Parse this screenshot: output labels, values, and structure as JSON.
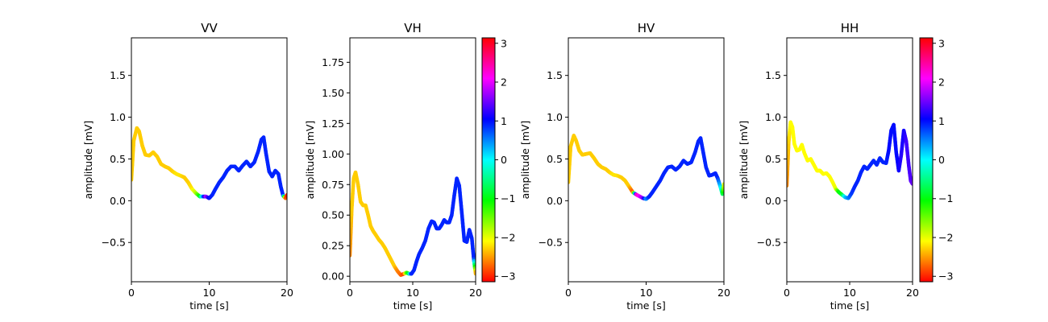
{
  "chart_data": [
    {
      "type": "line",
      "title": "VV",
      "xlabel": "time [s]",
      "ylabel": "amplitude [mV]",
      "xlim": [
        0,
        20
      ],
      "ylim": [
        -0.97,
        1.95
      ],
      "xticks": [
        0,
        10,
        20
      ],
      "yticks": [
        -0.5,
        0.0,
        0.5,
        1.0,
        1.5
      ],
      "ytick_labels": [
        "−0.5",
        "0.0",
        "0.5",
        "1.0",
        "1.5"
      ],
      "colorbar": false,
      "x": [
        0.0,
        0.3,
        0.7,
        1.0,
        1.4,
        1.8,
        2.3,
        2.8,
        3.3,
        3.8,
        4.3,
        4.8,
        5.3,
        5.8,
        6.3,
        6.8,
        7.3,
        7.8,
        8.3,
        8.8,
        9.2,
        9.6,
        10.0,
        10.4,
        10.8,
        11.3,
        11.8,
        12.3,
        12.8,
        13.3,
        13.8,
        14.3,
        14.8,
        15.3,
        15.8,
        16.3,
        16.7,
        17.0,
        17.3,
        17.7,
        18.1,
        18.5,
        18.9,
        19.2,
        19.5,
        19.8,
        20.0
      ],
      "y": [
        0.25,
        0.72,
        0.87,
        0.83,
        0.66,
        0.55,
        0.54,
        0.58,
        0.53,
        0.44,
        0.41,
        0.39,
        0.35,
        0.32,
        0.3,
        0.28,
        0.22,
        0.14,
        0.09,
        0.05,
        0.05,
        0.05,
        0.03,
        0.07,
        0.14,
        0.22,
        0.28,
        0.36,
        0.41,
        0.41,
        0.36,
        0.42,
        0.47,
        0.41,
        0.46,
        0.59,
        0.73,
        0.76,
        0.57,
        0.35,
        0.29,
        0.36,
        0.32,
        0.17,
        0.06,
        0.03,
        0.07
      ],
      "phase": [
        -2.3,
        -2.3,
        -2.3,
        -2.3,
        -2.3,
        -2.3,
        -2.3,
        -2.3,
        -2.3,
        -2.3,
        -2.3,
        -2.3,
        -2.3,
        -2.2,
        -2.2,
        -2.3,
        -2.3,
        -2.2,
        -1.8,
        -1.0,
        0.4,
        1.8,
        1.0,
        0.9,
        0.9,
        0.9,
        0.9,
        0.9,
        0.9,
        0.9,
        0.9,
        0.9,
        0.9,
        0.9,
        0.9,
        0.9,
        0.9,
        0.9,
        0.9,
        0.9,
        0.9,
        0.9,
        0.9,
        0.9,
        0.9,
        -2.7,
        -3.0
      ]
    },
    {
      "type": "line",
      "title": "VH",
      "xlabel": "time [s]",
      "ylabel": "amplitude [mV]",
      "xlim": [
        0,
        20
      ],
      "ylim": [
        -0.045,
        1.95
      ],
      "xticks": [
        0,
        10,
        20
      ],
      "yticks": [
        0.0,
        0.25,
        0.5,
        0.75,
        1.0,
        1.25,
        1.5,
        1.75
      ],
      "ytick_labels": [
        "0.00",
        "0.25",
        "0.50",
        "0.75",
        "1.00",
        "1.25",
        "1.50",
        "1.75"
      ],
      "colorbar": true,
      "colorbar_ticks": [
        -3,
        -2,
        -1,
        0,
        1,
        2,
        3
      ],
      "colorbar_tick_labels": [
        "−3",
        "−2",
        "−1",
        "0",
        "1",
        "2",
        "3"
      ],
      "colorbar_range": [
        -3.14,
        3.14
      ],
      "x": [
        0.0,
        0.3,
        0.6,
        0.9,
        1.3,
        1.7,
        2.1,
        2.5,
        2.9,
        3.3,
        3.7,
        4.1,
        4.6,
        5.1,
        5.6,
        6.1,
        6.6,
        7.1,
        7.6,
        8.1,
        8.6,
        9.0,
        9.4,
        9.8,
        10.2,
        10.6,
        11.0,
        11.5,
        12.0,
        12.5,
        13.0,
        13.4,
        13.8,
        14.2,
        14.6,
        15.0,
        15.4,
        15.8,
        16.2,
        16.6,
        17.0,
        17.4,
        17.8,
        18.2,
        18.6,
        19.0,
        19.4,
        19.7,
        20.0
      ],
      "y": [
        0.17,
        0.55,
        0.8,
        0.85,
        0.75,
        0.61,
        0.58,
        0.58,
        0.5,
        0.41,
        0.37,
        0.34,
        0.3,
        0.27,
        0.23,
        0.18,
        0.13,
        0.08,
        0.04,
        0.01,
        0.02,
        0.03,
        0.02,
        0.02,
        0.05,
        0.12,
        0.18,
        0.23,
        0.29,
        0.39,
        0.45,
        0.44,
        0.39,
        0.39,
        0.42,
        0.46,
        0.44,
        0.44,
        0.5,
        0.66,
        0.8,
        0.74,
        0.52,
        0.29,
        0.28,
        0.38,
        0.31,
        0.14,
        0.02
      ],
      "phase": [
        -2.6,
        -2.3,
        -2.3,
        -2.3,
        -2.3,
        -2.3,
        -2.3,
        -2.3,
        -2.3,
        -2.3,
        -2.3,
        -2.3,
        -2.3,
        -2.3,
        -2.3,
        -2.3,
        -2.3,
        -2.3,
        -2.6,
        -2.7,
        -2.9,
        -1.5,
        -0.7,
        0.9,
        0.9,
        0.9,
        0.9,
        0.9,
        0.9,
        0.9,
        0.9,
        0.9,
        0.9,
        0.9,
        0.9,
        0.9,
        0.9,
        0.9,
        0.9,
        0.9,
        0.9,
        0.9,
        0.9,
        0.9,
        0.9,
        0.9,
        0.9,
        0.9,
        -2.6
      ]
    },
    {
      "type": "line",
      "title": "HV",
      "xlabel": "time [s]",
      "ylabel": "amplitude [mV]",
      "xlim": [
        0,
        20
      ],
      "ylim": [
        -0.97,
        1.95
      ],
      "xticks": [
        0,
        10,
        20
      ],
      "yticks": [
        -0.5,
        0.0,
        0.5,
        1.0,
        1.5
      ],
      "ytick_labels": [
        "−0.5",
        "0.0",
        "0.5",
        "1.0",
        "1.5"
      ],
      "colorbar": false,
      "x": [
        0.0,
        0.3,
        0.7,
        1.0,
        1.4,
        1.8,
        2.3,
        2.8,
        3.3,
        3.8,
        4.3,
        4.8,
        5.3,
        5.8,
        6.3,
        6.8,
        7.3,
        7.8,
        8.3,
        8.8,
        9.2,
        9.6,
        10.0,
        10.4,
        10.8,
        11.3,
        11.8,
        12.3,
        12.8,
        13.3,
        13.8,
        14.3,
        14.8,
        15.3,
        15.8,
        16.3,
        16.7,
        17.0,
        17.3,
        17.7,
        18.1,
        18.5,
        18.9,
        19.2,
        19.5,
        19.8,
        20.0
      ],
      "y": [
        0.22,
        0.65,
        0.78,
        0.72,
        0.6,
        0.55,
        0.56,
        0.57,
        0.51,
        0.44,
        0.4,
        0.38,
        0.34,
        0.31,
        0.3,
        0.28,
        0.24,
        0.17,
        0.1,
        0.07,
        0.05,
        0.03,
        0.02,
        0.05,
        0.1,
        0.17,
        0.24,
        0.33,
        0.4,
        0.41,
        0.37,
        0.41,
        0.48,
        0.44,
        0.46,
        0.58,
        0.71,
        0.75,
        0.6,
        0.4,
        0.3,
        0.31,
        0.33,
        0.27,
        0.18,
        0.08,
        0.2
      ],
      "phase": [
        -2.3,
        -2.3,
        -2.3,
        -2.3,
        -2.3,
        -2.3,
        -2.3,
        -2.3,
        -2.3,
        -2.3,
        -2.3,
        -2.3,
        -2.3,
        -2.2,
        -2.2,
        -2.3,
        -2.3,
        -2.3,
        -2.8,
        2.4,
        2.0,
        1.6,
        0.4,
        0.9,
        0.9,
        0.9,
        0.9,
        0.9,
        0.9,
        0.9,
        0.9,
        0.9,
        0.9,
        0.9,
        0.9,
        0.9,
        0.9,
        0.9,
        0.9,
        0.9,
        0.9,
        0.9,
        0.9,
        0.9,
        0.3,
        -0.6,
        -2.0
      ]
    },
    {
      "type": "line",
      "title": "HH",
      "xlabel": "time [s]",
      "ylabel": "amplitude [mV]",
      "xlim": [
        0,
        20
      ],
      "ylim": [
        -0.97,
        1.95
      ],
      "xticks": [
        0,
        10,
        20
      ],
      "yticks": [
        -0.5,
        0.0,
        0.5,
        1.0,
        1.5
      ],
      "ytick_labels": [
        "−0.5",
        "0.0",
        "0.5",
        "1.0",
        "1.5"
      ],
      "colorbar": true,
      "colorbar_ticks": [
        -3,
        -2,
        -1,
        0,
        1,
        2,
        3
      ],
      "colorbar_tick_labels": [
        "−3",
        "−2",
        "−1",
        "0",
        "1",
        "2",
        "3"
      ],
      "colorbar_range": [
        -3.14,
        3.14
      ],
      "x": [
        0.0,
        0.3,
        0.6,
        0.9,
        1.2,
        1.6,
        2.0,
        2.4,
        2.8,
        3.3,
        3.8,
        4.3,
        4.8,
        5.3,
        5.8,
        6.3,
        6.8,
        7.3,
        7.8,
        8.3,
        8.8,
        9.3,
        9.8,
        10.3,
        10.8,
        11.3,
        11.8,
        12.3,
        12.8,
        13.3,
        13.8,
        14.3,
        14.8,
        15.3,
        15.8,
        16.2,
        16.6,
        17.0,
        17.4,
        17.8,
        18.2,
        18.6,
        19.0,
        19.4,
        19.7,
        20.0
      ],
      "y": [
        0.18,
        0.7,
        0.94,
        0.88,
        0.68,
        0.6,
        0.61,
        0.67,
        0.57,
        0.48,
        0.5,
        0.43,
        0.36,
        0.36,
        0.32,
        0.33,
        0.29,
        0.22,
        0.14,
        0.1,
        0.07,
        0.04,
        0.03,
        0.09,
        0.17,
        0.24,
        0.34,
        0.41,
        0.38,
        0.43,
        0.48,
        0.43,
        0.51,
        0.46,
        0.45,
        0.6,
        0.84,
        0.91,
        0.58,
        0.36,
        0.55,
        0.84,
        0.71,
        0.42,
        0.24,
        0.2
      ],
      "phase": [
        -2.6,
        -2.3,
        -2.1,
        -2.1,
        -2.1,
        -2.1,
        -2.1,
        -2.1,
        -2.1,
        -2.1,
        -2.1,
        -2.1,
        -2.1,
        -2.1,
        -2.1,
        -2.1,
        -2.1,
        -2.1,
        -2.0,
        -1.0,
        -0.9,
        0.2,
        0.5,
        0.8,
        0.9,
        0.9,
        0.9,
        0.9,
        0.9,
        0.9,
        0.9,
        0.9,
        0.9,
        0.9,
        0.9,
        1.0,
        1.0,
        1.0,
        1.0,
        1.1,
        1.2,
        1.1,
        1.3,
        1.3,
        1.4,
        1.5
      ]
    }
  ]
}
